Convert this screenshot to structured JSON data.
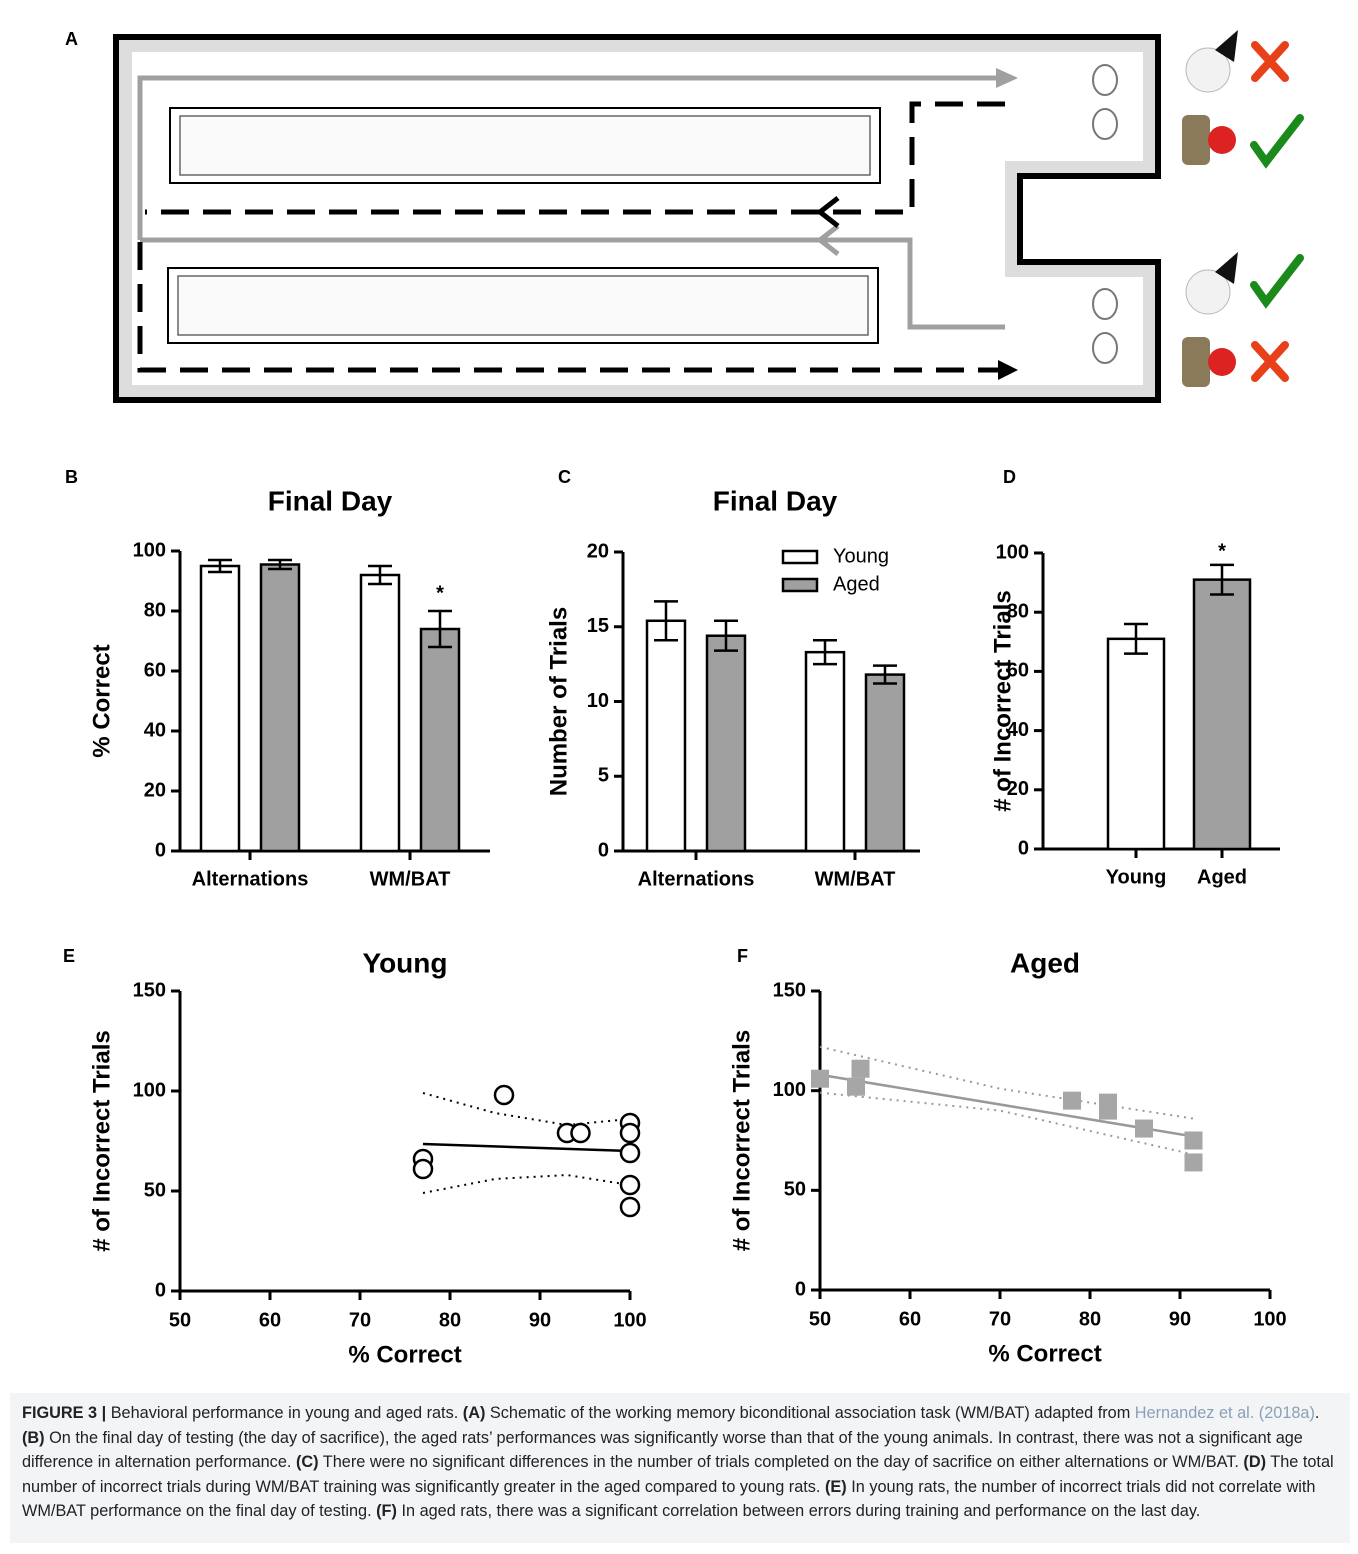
{
  "diagram": {
    "panel": "A"
  },
  "chart_data": [
    {
      "type": "bar",
      "panel": "B",
      "title": "Final Day",
      "ylabel": "% Correct",
      "categories": [
        "Alternations",
        "WM/BAT"
      ],
      "series": [
        {
          "color": "#ffffff",
          "values": [
            95,
            92
          ],
          "errors": [
            2,
            3
          ]
        },
        {
          "color": "#a0a0a0",
          "values": [
            95.5,
            74
          ],
          "errors": [
            1.5,
            6
          ]
        }
      ],
      "ylim": [
        0,
        100
      ],
      "yticks": [
        0,
        20,
        40,
        60,
        80,
        100
      ],
      "grid": false,
      "annotations": [
        {
          "text": "*"
        }
      ]
    },
    {
      "type": "bar",
      "panel": "C",
      "title": "Final Day",
      "ylabel": "Number of Trials",
      "categories": [
        "Alternations",
        "WM/BAT"
      ],
      "series": [
        {
          "name": "Young",
          "color": "#ffffff",
          "values": [
            15.4,
            13.3
          ],
          "errors": [
            1.3,
            0.8
          ]
        },
        {
          "name": "Aged",
          "color": "#a0a0a0",
          "values": [
            14.4,
            11.8
          ],
          "errors": [
            1.0,
            0.6
          ]
        }
      ],
      "ylim": [
        0,
        20
      ],
      "yticks": [
        0,
        5,
        10,
        15,
        20
      ],
      "grid": false,
      "legend": "top-right"
    },
    {
      "type": "bar",
      "panel": "D",
      "ylabel": "# of Incorrect Trials",
      "categories": [
        "Young",
        "Aged"
      ],
      "values": [
        71,
        91
      ],
      "errors": [
        5,
        5
      ],
      "colors": [
        "#ffffff",
        "#a0a0a0"
      ],
      "ylim": [
        0,
        100
      ],
      "yticks": [
        0,
        20,
        40,
        60,
        80,
        100
      ],
      "grid": false,
      "annotations": [
        {
          "text": "*"
        }
      ]
    },
    {
      "type": "scatter",
      "panel": "E",
      "title": "Young",
      "xlabel": "% Correct",
      "ylabel": "# of Incorrect Trials",
      "marker": "circle",
      "color": "#000000",
      "x": [
        77,
        77,
        86,
        93,
        94.5,
        100,
        100,
        100,
        100,
        100
      ],
      "y": [
        66,
        61,
        98,
        79,
        79,
        84,
        79,
        69,
        53,
        42
      ],
      "fit": {
        "x": [
          77,
          100
        ],
        "y": [
          73.5,
          70
        ]
      },
      "ci_upper": {
        "x": [
          77,
          85,
          93,
          100
        ],
        "y": [
          99,
          89,
          83,
          86
        ]
      },
      "ci_lower": {
        "x": [
          77,
          85,
          93,
          100
        ],
        "y": [
          49,
          56,
          58,
          53
        ]
      },
      "xlim": [
        50,
        100
      ],
      "xticks": [
        50,
        60,
        70,
        80,
        90,
        100
      ],
      "ylim": [
        0,
        150
      ],
      "yticks": [
        0,
        50,
        100,
        150
      ],
      "grid": false
    },
    {
      "type": "scatter",
      "panel": "F",
      "title": "Aged",
      "xlabel": "% Correct",
      "ylabel": "# of Incorrect Trials",
      "marker": "square",
      "color": "#a6a6a6",
      "x": [
        50,
        54,
        54.5,
        78,
        82,
        82,
        86,
        91.5,
        91.5
      ],
      "y": [
        106,
        102,
        111,
        95,
        94,
        90,
        81,
        75,
        64
      ],
      "fit": {
        "x": [
          50,
          91.5
        ],
        "y": [
          108,
          77
        ]
      },
      "ci_upper": {
        "x": [
          50,
          70,
          91.5
        ],
        "y": [
          122,
          101,
          86
        ]
      },
      "ci_lower": {
        "x": [
          50,
          70,
          91.5
        ],
        "y": [
          99,
          90,
          68
        ]
      },
      "xlim": [
        50,
        100
      ],
      "xticks": [
        50,
        60,
        70,
        80,
        90,
        100
      ],
      "ylim": [
        0,
        150
      ],
      "yticks": [
        0,
        50,
        100,
        150
      ],
      "grid": false
    }
  ],
  "caption": [
    {
      "text": "FIGURE 3 |",
      "style": "bold"
    },
    {
      "text": " Behavioral performance in young and aged rats. "
    },
    {
      "text": "(A)",
      "style": "bold"
    },
    {
      "text": " Schematic of the working memory biconditional association task (WM/BAT) adapted from "
    },
    {
      "text": "Hernandez et al. (2018a)",
      "style": "link"
    },
    {
      "text": ". "
    },
    {
      "text": "(B)",
      "style": "bold"
    },
    {
      "text": " On the final day of testing (the day of sacrifice), the aged rats’ performances was significantly worse than that of the young animals. In contrast, there was not a significant age difference in alternation performance. "
    },
    {
      "text": "(C)",
      "style": "bold"
    },
    {
      "text": " There were no significant differences in the number of trials completed on the day of sacrifice on either alternations or WM/BAT. "
    },
    {
      "text": "(D)",
      "style": "bold"
    },
    {
      "text": " The total number of incorrect trials during WM/BAT training was significantly greater in the aged compared to young rats. "
    },
    {
      "text": "(E)",
      "style": "bold"
    },
    {
      "text": " In young rats, the number of incorrect trials did not correlate with WM/BAT performance on the final day of testing. "
    },
    {
      "text": "(F)",
      "style": "bold"
    },
    {
      "text": " In aged rats, there was a significant correlation between errors during training and performance on the last day."
    }
  ]
}
